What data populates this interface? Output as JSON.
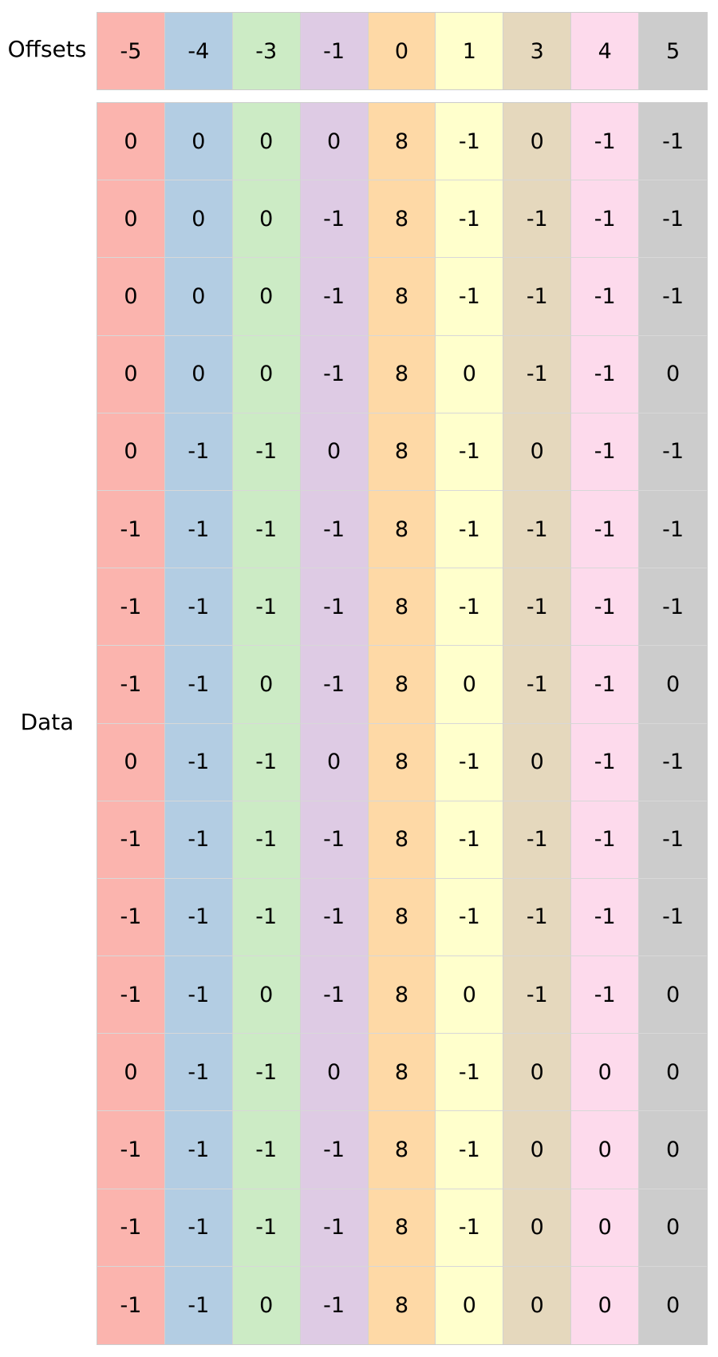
{
  "labels": {
    "offsets": "Offsets",
    "data": "Data"
  },
  "column_colors": [
    "#fbb4ae",
    "#b3cde3",
    "#ccebc5",
    "#decbe4",
    "#fed9a6",
    "#ffffcc",
    "#e5d8bd",
    "#fddaec",
    "#cccccc"
  ],
  "offsets": [
    "-5",
    "-4",
    "-3",
    "-1",
    "0",
    "1",
    "3",
    "4",
    "5"
  ],
  "data": [
    [
      "0",
      "0",
      "0",
      "0",
      "8",
      "-1",
      "0",
      "-1",
      "-1"
    ],
    [
      "0",
      "0",
      "0",
      "-1",
      "8",
      "-1",
      "-1",
      "-1",
      "-1"
    ],
    [
      "0",
      "0",
      "0",
      "-1",
      "8",
      "-1",
      "-1",
      "-1",
      "-1"
    ],
    [
      "0",
      "0",
      "0",
      "-1",
      "8",
      "0",
      "-1",
      "-1",
      "0"
    ],
    [
      "0",
      "-1",
      "-1",
      "0",
      "8",
      "-1",
      "0",
      "-1",
      "-1"
    ],
    [
      "-1",
      "-1",
      "-1",
      "-1",
      "8",
      "-1",
      "-1",
      "-1",
      "-1"
    ],
    [
      "-1",
      "-1",
      "-1",
      "-1",
      "8",
      "-1",
      "-1",
      "-1",
      "-1"
    ],
    [
      "-1",
      "-1",
      "0",
      "-1",
      "8",
      "0",
      "-1",
      "-1",
      "0"
    ],
    [
      "0",
      "-1",
      "-1",
      "0",
      "8",
      "-1",
      "0",
      "-1",
      "-1"
    ],
    [
      "-1",
      "-1",
      "-1",
      "-1",
      "8",
      "-1",
      "-1",
      "-1",
      "-1"
    ],
    [
      "-1",
      "-1",
      "-1",
      "-1",
      "8",
      "-1",
      "-1",
      "-1",
      "-1"
    ],
    [
      "-1",
      "-1",
      "0",
      "-1",
      "8",
      "0",
      "-1",
      "-1",
      "0"
    ],
    [
      "0",
      "-1",
      "-1",
      "0",
      "8",
      "-1",
      "0",
      "0",
      "0"
    ],
    [
      "-1",
      "-1",
      "-1",
      "-1",
      "8",
      "-1",
      "0",
      "0",
      "0"
    ],
    [
      "-1",
      "-1",
      "-1",
      "-1",
      "8",
      "-1",
      "0",
      "0",
      "0"
    ],
    [
      "-1",
      "-1",
      "0",
      "-1",
      "8",
      "0",
      "0",
      "0",
      "0"
    ]
  ]
}
